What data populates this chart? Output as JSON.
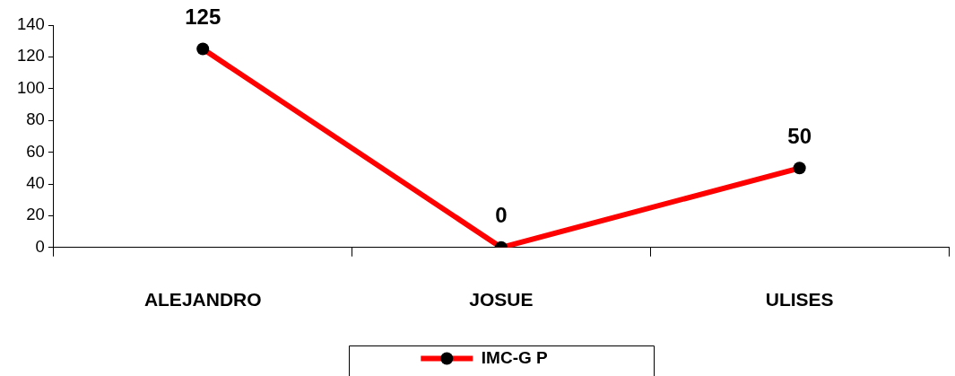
{
  "chart_data": {
    "type": "line",
    "categories": [
      "ALEJANDRO",
      "JOSUE",
      "ULISES"
    ],
    "series": [
      {
        "name": "IMC-G P",
        "color": "#ff0000",
        "values": [
          125,
          0,
          50
        ]
      }
    ],
    "ylim": [
      0,
      140
    ],
    "yticks": [
      0,
      20,
      40,
      60,
      80,
      100,
      120,
      140
    ],
    "grid": false,
    "legend": "bottom",
    "marker": "circle",
    "line_style": "solid",
    "data_labels": true
  }
}
